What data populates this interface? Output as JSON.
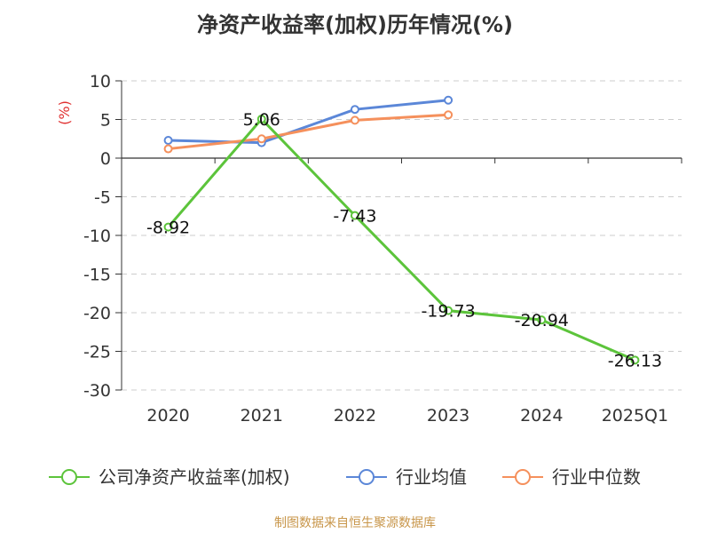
{
  "chart_data": {
    "type": "line",
    "title": "净资产收益率(加权)历年情况(%)",
    "ylabel": "(%)",
    "categories": [
      "2020",
      "2021",
      "2022",
      "2023",
      "2024",
      "2025Q1"
    ],
    "yticks": [
      10,
      5,
      0,
      -5,
      -10,
      -15,
      -20,
      -25,
      -30
    ],
    "ylim": [
      -30,
      10
    ],
    "grid": true,
    "legend_position": "bottom",
    "series": [
      {
        "name": "公司净资产收益率(加权)",
        "color": "#5cc43b",
        "values": [
          -8.92,
          5.06,
          -7.43,
          -19.73,
          -20.94,
          -26.13
        ],
        "labels": [
          "-8.92",
          "5.06",
          "-7.43",
          "-19.73",
          "-20.94",
          "-26.13"
        ]
      },
      {
        "name": "行业均值",
        "color": "#5b87d8",
        "values": [
          2.3,
          2.0,
          6.3,
          7.5,
          null,
          null
        ]
      },
      {
        "name": "行业中位数",
        "color": "#f5905c",
        "values": [
          1.2,
          2.5,
          4.9,
          5.6,
          null,
          null
        ]
      }
    ]
  },
  "source_note": "制图数据来自恒生聚源数据库"
}
